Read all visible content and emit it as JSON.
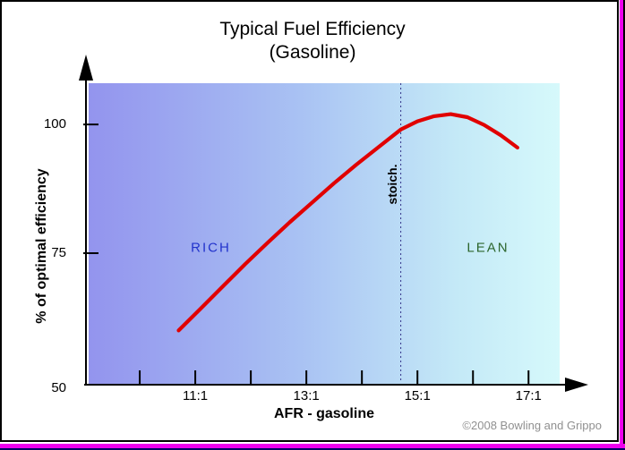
{
  "page": {
    "background": "#ffffff",
    "border_color": "#000000",
    "shadow_color": "#ee00ee",
    "right_edge_color": "#000000",
    "bottom_edge_color": "#000066"
  },
  "chart_data": {
    "type": "line",
    "title": "Typical Fuel Efficiency",
    "subtitle": "(Gasoline)",
    "xlabel": "AFR - gasoline",
    "ylabel": "% of optimal efficiency",
    "xlim": [
      9.08,
      17.56
    ],
    "ylim": [
      50,
      108
    ],
    "grid": false,
    "legend": "none",
    "x_ticks": [
      {
        "value": 10,
        "label": ""
      },
      {
        "value": 11,
        "label": "11:1"
      },
      {
        "value": 12,
        "label": ""
      },
      {
        "value": 13,
        "label": "13:1"
      },
      {
        "value": 14,
        "label": ""
      },
      {
        "value": 15,
        "label": "15:1"
      },
      {
        "value": 16,
        "label": ""
      },
      {
        "value": 17,
        "label": "17:1"
      }
    ],
    "y_ticks": [
      {
        "value": 100,
        "label": "100",
        "tick": true
      },
      {
        "value": 75,
        "label": "75",
        "tick": true
      },
      {
        "value": 50,
        "label": "50",
        "tick": false
      }
    ],
    "series": [
      {
        "name": "fuel-efficiency-curve",
        "color": "#e10000",
        "width": 4.2,
        "points": [
          [
            10.7,
            60.0
          ],
          [
            11.1,
            64.3
          ],
          [
            11.5,
            68.6
          ],
          [
            11.9,
            72.9
          ],
          [
            12.3,
            77.0
          ],
          [
            12.7,
            81.0
          ],
          [
            13.1,
            84.8
          ],
          [
            13.5,
            88.6
          ],
          [
            13.9,
            92.2
          ],
          [
            14.3,
            95.6
          ],
          [
            14.7,
            99.0
          ],
          [
            15.0,
            100.6
          ],
          [
            15.3,
            101.6
          ],
          [
            15.6,
            102.0
          ],
          [
            15.9,
            101.4
          ],
          [
            16.2,
            99.9
          ],
          [
            16.5,
            97.9
          ],
          [
            16.8,
            95.5
          ]
        ]
      }
    ],
    "annotations": {
      "rich": {
        "text": "RICH",
        "color": "#2233cc",
        "afr": 11.28,
        "efficiency": 76
      },
      "lean": {
        "text": "LEAN",
        "color": "#2d662d",
        "afr": 16.27,
        "efficiency": 76
      },
      "stoich_line": {
        "afr": 14.7,
        "label": "stoich.",
        "style": "dotted",
        "line_color": "#333388",
        "label_color": "#000000"
      }
    },
    "axis_color": "#000000",
    "plot_background_gradient": {
      "direction": "to right",
      "stops": [
        {
          "color": "#9394ee",
          "pos": 0
        },
        {
          "color": "#a9c2f3",
          "pos": 45
        },
        {
          "color": "#c4e9f7",
          "pos": 78
        },
        {
          "color": "#d6f9fb",
          "pos": 100
        }
      ]
    }
  },
  "footer": {
    "copyright": "©2008 Bowling and Grippo",
    "color": "#909090"
  }
}
